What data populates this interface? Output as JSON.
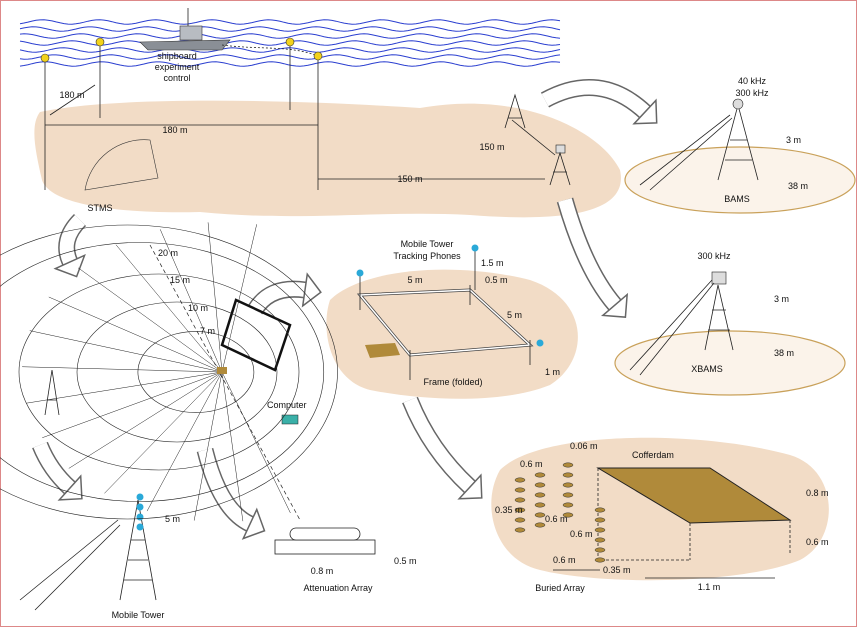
{
  "shipboard": {
    "lines": [
      "shipboard",
      "experiment",
      "control"
    ]
  },
  "survey": {
    "dist_vertical": "180 m",
    "dist_horizontal": "180 m",
    "dist_bams": "150 m",
    "dist_stms_tower": "150 m",
    "stms": "STMS"
  },
  "bams": {
    "freq_low": "40 kHz",
    "freq_high": "300 kHz",
    "height": "3 m",
    "range": "38 m",
    "label": "BAMS"
  },
  "xbams": {
    "freq": "300 kHz",
    "height": "3 m",
    "range": "38 m",
    "label": "XBAMS"
  },
  "frame": {
    "title": [
      "Mobile Tower",
      "Tracking Phones"
    ],
    "tower_height": "1.5 m",
    "offset": "0.5 m",
    "length": "5 m",
    "width": "5 m",
    "leg": "1 m",
    "label": "Frame (folded)"
  },
  "stms_grid": {
    "ranges": [
      "20 m",
      "15 m",
      "10 m",
      "7 m"
    ],
    "computer": "Computer"
  },
  "mobile_tower": {
    "height": "5 m",
    "label": "Mobile Tower"
  },
  "attenuation_array": {
    "length": "0.8 m",
    "width": "0.5 m",
    "label": "Attenuation Array"
  },
  "buried_array": {
    "cofferdam": "Cofferdam",
    "depth_top": "0.06 m",
    "spacing_top": "0.6 m",
    "vertical": "0.35 m",
    "inner_1": "0.6 m",
    "inner_2": "0.6 m",
    "spacing_bottom": "0.6 m",
    "offset_bottom": "0.35 m",
    "cofferdam_length": "1.1 m",
    "cofferdam_width": "0.8 m",
    "cofferdam_depth": "0.6 m",
    "label": "Buried Array"
  }
}
